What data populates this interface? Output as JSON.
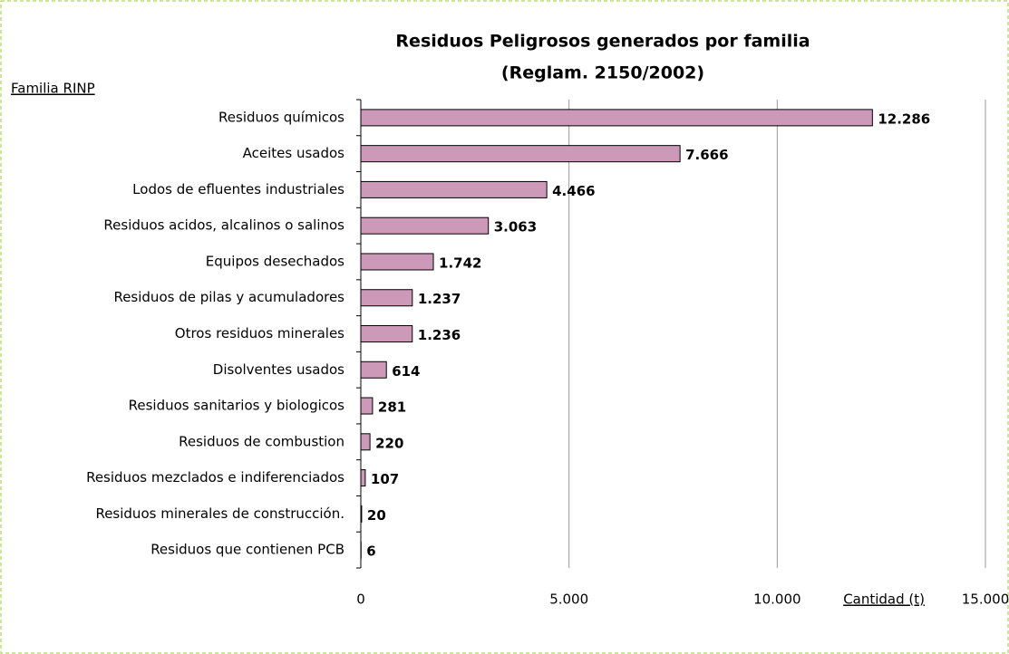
{
  "chart_data": {
    "type": "hbar",
    "title": [
      "Residuos Peligrosos generados por familia",
      "(Reglam. 2150/2002)"
    ],
    "y_axis_label": "Familia RINP",
    "x_axis_label": "Cantidad (t)",
    "categories": [
      "Residuos químicos",
      "Aceites usados",
      "Lodos de efluentes industriales",
      "Residuos acidos, alcalinos o salinos",
      "Equipos desechados",
      "Residuos de pilas y acumuladores",
      "Otros residuos minerales",
      "Disolventes usados",
      "Residuos sanitarios y biologicos",
      "Residuos de combustion",
      "Residuos mezclados e indiferenciados",
      "Residuos minerales de construcción.",
      "Residuos que contienen PCB"
    ],
    "values": [
      12286,
      7666,
      4466,
      3063,
      1742,
      1237,
      1236,
      614,
      281,
      220,
      107,
      20,
      6
    ],
    "value_labels": [
      "12.286",
      "7.666",
      "4.466",
      "3.063",
      "1.742",
      "1.237",
      "1.236",
      "614",
      "281",
      "220",
      "107",
      "20",
      "6"
    ],
    "color": "#cc99b8",
    "xlim": [
      0,
      15000
    ],
    "xticks": [
      0,
      {
        "value": 5000,
        "label": "5.000"
      },
      {
        "value": 10000,
        "label": "10.000"
      },
      {
        "value": 15000,
        "label": "15.000"
      }
    ],
    "grid": true
  }
}
